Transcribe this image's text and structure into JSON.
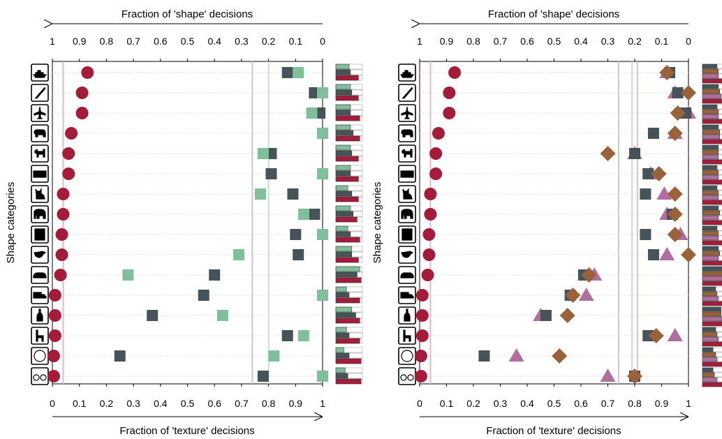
{
  "chart_data": [
    {
      "type": "scatter",
      "title_top": "Fraction of 'shape' decisions",
      "title_bottom": "Fraction of 'texture' decisions",
      "ylabel": "Shape categories",
      "top_ticks": [
        "1",
        "0.9",
        "0.8",
        "0.7",
        "0.6",
        "0.5",
        "0.4",
        "0.3",
        "0.2",
        "0.1",
        "0"
      ],
      "bottom_ticks": [
        "0",
        "0.1",
        "0.2",
        "0.3",
        "0.4",
        "0.5",
        "0.6",
        "0.7",
        "0.8",
        "0.9",
        "1"
      ],
      "xlim": [
        0,
        1
      ],
      "categories": [
        "boat",
        "knife",
        "airplane",
        "bear",
        "dog",
        "keyboard",
        "cat",
        "elephant",
        "oven",
        "bird",
        "car",
        "truck",
        "bottle",
        "chair",
        "clock",
        "bicycle"
      ],
      "series": [
        {
          "marker": "circle",
          "color": "#a51c3a",
          "values": [
            0.13,
            0.11,
            0.11,
            0.07,
            0.06,
            0.06,
            0.04,
            0.04,
            0.035,
            0.035,
            0.03,
            0.01,
            0.01,
            0.01,
            0.005,
            0.005
          ]
        },
        {
          "marker": "square",
          "color": "#465459",
          "values": [
            0.87,
            0.97,
            0.99,
            null,
            0.81,
            0.81,
            0.89,
            0.97,
            0.9,
            0.91,
            0.6,
            0.56,
            0.37,
            0.87,
            0.25,
            0.78
          ]
        },
        {
          "marker": "square",
          "color": "#7fbf9a",
          "values": [
            0.91,
            1.0,
            0.96,
            1.0,
            0.78,
            1.0,
            0.77,
            0.93,
            1.0,
            0.69,
            0.28,
            1.0,
            0.63,
            0.93,
            0.82,
            1.0
          ]
        }
      ],
      "vlines": [
        {
          "value": 0.04,
          "color": "#e8b7c2"
        },
        {
          "value": 0.74,
          "color": "#c8c8c8"
        },
        {
          "value": 0.8,
          "color": "#c4e0d0"
        }
      ],
      "bar_series": [
        {
          "color": "#7fbf9a",
          "values": [
            0.5,
            0.55,
            0.55,
            0.55,
            0.55,
            0.55,
            0.45,
            0.55,
            0.45,
            0.6,
            0.9,
            0.4,
            0.6,
            0.4,
            0.3,
            0.35
          ]
        },
        {
          "color": "#465459",
          "values": [
            0.55,
            0.6,
            0.55,
            0.65,
            0.6,
            0.55,
            0.6,
            0.65,
            0.55,
            0.6,
            0.8,
            0.5,
            0.75,
            0.5,
            0.5,
            0.45
          ]
        },
        {
          "color": "#a51c3a",
          "values": [
            0.85,
            0.85,
            0.9,
            0.9,
            0.85,
            0.85,
            0.85,
            0.8,
            0.9,
            0.85,
            0.95,
            0.9,
            0.9,
            0.9,
            0.95,
            0.95
          ]
        }
      ]
    },
    {
      "type": "scatter",
      "title_top": "Fraction of 'shape' decisions",
      "title_bottom": "Fraction of 'texture' decisions",
      "ylabel": "Shape categories",
      "top_ticks": [
        "1",
        "0.9",
        "0.8",
        "0.7",
        "0.6",
        "0.5",
        "0.4",
        "0.3",
        "0.2",
        "0.1",
        "0"
      ],
      "bottom_ticks": [
        "0",
        "0.1",
        "0.2",
        "0.3",
        "0.4",
        "0.5",
        "0.6",
        "0.7",
        "0.8",
        "0.9",
        "1"
      ],
      "xlim": [
        0,
        1
      ],
      "categories": [
        "boat",
        "knife",
        "airplane",
        "bear",
        "dog",
        "keyboard",
        "cat",
        "elephant",
        "oven",
        "bird",
        "car",
        "truck",
        "bottle",
        "chair",
        "clock",
        "bicycle"
      ],
      "series": [
        {
          "marker": "circle",
          "color": "#a51c3a",
          "values": [
            0.13,
            0.11,
            0.11,
            0.07,
            0.06,
            0.06,
            0.04,
            0.04,
            0.035,
            0.035,
            0.03,
            0.01,
            0.01,
            0.01,
            0.005,
            0.005
          ]
        },
        {
          "marker": "triangle",
          "color": "#b06f9e",
          "values": [
            0.92,
            0.95,
            1.0,
            0.95,
            0.8,
            0.86,
            0.91,
            0.92,
            0.97,
            0.92,
            0.65,
            0.62,
            0.45,
            0.95,
            0.36,
            0.7
          ]
        },
        {
          "marker": "square",
          "color": "#465459",
          "values": [
            0.93,
            0.96,
            0.99,
            0.87,
            0.8,
            0.85,
            0.84,
            0.94,
            0.84,
            0.87,
            0.61,
            0.56,
            0.47,
            0.85,
            0.24,
            0.8
          ]
        },
        {
          "marker": "diamond",
          "color": "#996239",
          "values": [
            0.92,
            1.0,
            0.96,
            0.95,
            0.7,
            0.89,
            0.95,
            0.95,
            0.95,
            1.0,
            0.63,
            0.57,
            0.55,
            0.88,
            0.52,
            0.8
          ]
        }
      ],
      "vlines": [
        {
          "value": 0.04,
          "color": "#e8b7c2"
        },
        {
          "value": 0.74,
          "color": "#c8c8c8"
        },
        {
          "value": 0.79,
          "color": "#e8c8d6"
        },
        {
          "value": 0.81,
          "color": "#dcc4b0"
        }
      ],
      "bar_series": [
        {
          "color": "#465459",
          "values": [
            0.55,
            0.6,
            0.55,
            0.6,
            0.6,
            0.55,
            0.55,
            0.6,
            0.55,
            0.6,
            0.8,
            0.5,
            0.7,
            0.5,
            0.4,
            0.4
          ]
        },
        {
          "color": "#996239",
          "values": [
            0.6,
            0.65,
            0.6,
            0.65,
            0.6,
            0.6,
            0.6,
            0.65,
            0.6,
            0.65,
            0.8,
            0.55,
            0.7,
            0.55,
            0.5,
            0.45
          ]
        },
        {
          "color": "#b06f9e",
          "values": [
            0.6,
            0.7,
            0.6,
            0.65,
            0.6,
            0.6,
            0.6,
            0.6,
            0.6,
            0.6,
            0.8,
            0.6,
            0.75,
            0.6,
            0.55,
            0.55
          ]
        },
        {
          "color": "#a51c3a",
          "values": [
            0.85,
            0.85,
            0.9,
            0.9,
            0.85,
            0.85,
            0.85,
            0.85,
            0.9,
            0.85,
            0.95,
            0.9,
            0.9,
            0.9,
            0.95,
            0.95
          ]
        }
      ]
    }
  ]
}
